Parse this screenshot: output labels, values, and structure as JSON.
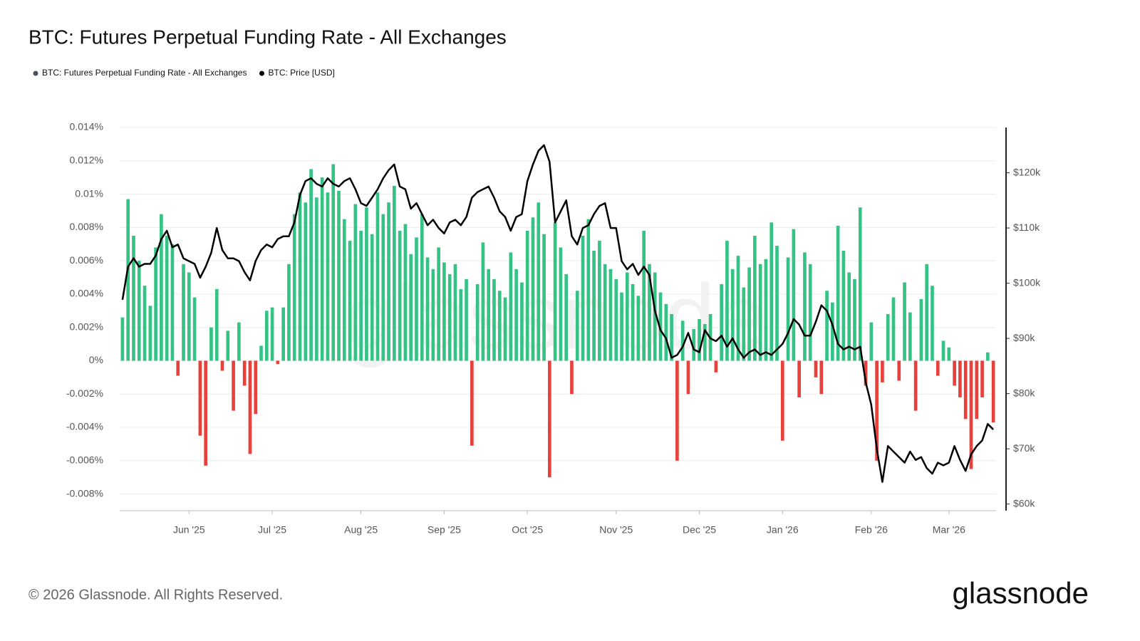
{
  "chart_data": {
    "type": "bar-line",
    "title": "BTC: Futures Perpetual Funding Rate - All Exchanges",
    "categories": [
      null,
      null,
      null,
      null,
      null,
      null,
      null,
      null,
      null,
      null,
      null,
      null,
      "Jun '25",
      null,
      null,
      null,
      null,
      null,
      null,
      null,
      null,
      null,
      null,
      null,
      null,
      null,
      null,
      "Jul '25",
      null,
      null,
      null,
      null,
      null,
      null,
      null,
      null,
      null,
      null,
      null,
      null,
      null,
      null,
      null,
      "Aug '25",
      null,
      null,
      null,
      null,
      null,
      null,
      null,
      null,
      null,
      null,
      null,
      null,
      null,
      null,
      "Sep '25",
      null,
      null,
      null,
      null,
      null,
      null,
      null,
      null,
      null,
      null,
      null,
      null,
      null,
      null,
      "Oct '25",
      null,
      null,
      null,
      null,
      null,
      null,
      null,
      null,
      null,
      null,
      null,
      null,
      null,
      null,
      null,
      "Nov '25",
      null,
      null,
      null,
      null,
      null,
      null,
      null,
      null,
      null,
      null,
      null,
      null,
      null,
      null,
      "Dec '25",
      null,
      null,
      null,
      null,
      null,
      null,
      null,
      null,
      null,
      null,
      null,
      null,
      null,
      null,
      "Jan '26",
      null,
      null,
      null,
      null,
      null,
      null,
      null,
      null,
      null,
      null,
      null,
      null,
      null,
      null,
      null,
      "Feb '26",
      null,
      null,
      null,
      null,
      null,
      null,
      null,
      null,
      null,
      null,
      null,
      null,
      null,
      "Mar '26",
      null,
      null,
      null,
      null,
      null,
      null,
      null,
      null
    ],
    "series": [
      {
        "name": "BTC: Futures Perpetual Funding Rate - All Exchanges",
        "color": "#4a4f5a",
        "positive_color": "#35c285",
        "negative_color": "#e8413c",
        "values": [
          0.0026,
          0.0097,
          0.0075,
          0.006,
          0.0045,
          0.0033,
          0.0068,
          0.0088,
          0.0075,
          0.007,
          -0.0009,
          0.0058,
          0.0053,
          0.0038,
          -0.0045,
          -0.0063,
          0.002,
          0.0043,
          -0.0006,
          0.0018,
          -0.003,
          0.0023,
          -0.0015,
          -0.0056,
          -0.0032,
          0.0009,
          0.003,
          0.0032,
          -0.0002,
          0.0032,
          0.0058,
          0.0088,
          0.0101,
          0.0095,
          0.0115,
          0.0098,
          0.011,
          0.0101,
          0.0118,
          0.0102,
          0.0085,
          0.0072,
          0.0094,
          0.0078,
          0.0092,
          0.0076,
          0.0101,
          0.0088,
          0.0095,
          0.0105,
          0.0078,
          0.0082,
          0.0064,
          0.0074,
          0.0088,
          0.0062,
          0.0055,
          0.0068,
          0.0059,
          0.0052,
          0.0058,
          0.0043,
          0.0049,
          -0.0051,
          0.0046,
          0.0071,
          0.0055,
          0.0049,
          0.0042,
          0.0038,
          0.0065,
          0.0055,
          0.0047,
          0.0078,
          0.0086,
          0.0095,
          0.0076,
          -0.007,
          0.0083,
          0.0068,
          0.0052,
          -0.002,
          0.0042,
          0.0075,
          0.0085,
          0.0066,
          0.0072,
          0.0058,
          0.0055,
          0.0049,
          0.0041,
          0.0053,
          0.0046,
          0.0039,
          0.0078,
          0.0058,
          0.0053,
          0.0041,
          0.0034,
          0.0028,
          -0.006,
          0.0024,
          -0.002,
          0.0019,
          0.0025,
          0.0022,
          0.0028,
          -0.0007,
          0.0046,
          0.0072,
          0.0055,
          0.0063,
          0.0044,
          0.0056,
          0.0075,
          0.0058,
          0.0061,
          0.0083,
          0.0069,
          -0.0048,
          0.0062,
          0.0079,
          -0.0022,
          0.0065,
          0.0058,
          -0.001,
          -0.002,
          0.0042,
          0.0035,
          0.0081,
          0.0066,
          0.0053,
          0.0049,
          0.0092,
          -0.0015,
          0.0023,
          -0.006,
          -0.0013,
          0.0028,
          0.0038,
          -0.0012,
          0.0047,
          0.0029,
          -0.003,
          0.0037,
          0.0058,
          0.0045,
          -0.0009,
          0.0012,
          0.0008,
          -0.0015,
          -0.0022,
          -0.0035,
          -0.0065,
          -0.0035,
          -0.0022,
          0.0005,
          -0.0037
        ]
      },
      {
        "name": "BTC: Price [USD]",
        "color": "#000000",
        "axis": "y2",
        "values": [
          97000,
          103000,
          104500,
          103000,
          103500,
          103500,
          105000,
          108000,
          109500,
          106500,
          107000,
          104500,
          104000,
          103500,
          101000,
          103000,
          105500,
          110000,
          106000,
          104500,
          104500,
          104000,
          102000,
          100500,
          104000,
          106000,
          107000,
          106500,
          108000,
          108500,
          108500,
          111000,
          116000,
          118500,
          119000,
          118000,
          117500,
          119000,
          118000,
          117500,
          118500,
          119000,
          117000,
          114500,
          114000,
          115500,
          117000,
          119000,
          120500,
          121500,
          117500,
          117000,
          113500,
          114500,
          112500,
          110500,
          111500,
          110000,
          109000,
          111000,
          111500,
          110500,
          112000,
          115500,
          116500,
          117000,
          117500,
          115500,
          113000,
          112000,
          109500,
          112000,
          112500,
          118500,
          121500,
          124000,
          125000,
          122000,
          111000,
          113000,
          115000,
          108500,
          107000,
          110000,
          110500,
          112500,
          114000,
          114500,
          110000,
          110000,
          104000,
          102500,
          103500,
          101500,
          103000,
          101500,
          95000,
          91500,
          90000,
          86500,
          87000,
          88500,
          91000,
          88000,
          87500,
          91500,
          90000,
          89500,
          90500,
          88500,
          90000,
          88000,
          86500,
          87500,
          88000,
          87000,
          87500,
          87000,
          88000,
          89000,
          91000,
          93500,
          92500,
          90500,
          90500,
          93000,
          96000,
          95000,
          92500,
          89000,
          88000,
          88500,
          88000,
          88500,
          82000,
          78000,
          70000,
          64000,
          70500,
          69500,
          68500,
          67500,
          69500,
          68000,
          68500,
          66500,
          65500,
          67500,
          67000,
          67500,
          70500,
          68000,
          66000,
          69000,
          70500,
          71500,
          74500,
          73500
        ]
      }
    ],
    "ylim": [
      -0.009,
      0.014
    ],
    "yticks": [
      {
        "value": 0.014,
        "label": "0.014%"
      },
      {
        "value": 0.012,
        "label": "0.012%"
      },
      {
        "value": 0.01,
        "label": "0.01%"
      },
      {
        "value": 0.008,
        "label": "0.008%"
      },
      {
        "value": 0.006,
        "label": "0.006%"
      },
      {
        "value": 0.004,
        "label": "0.004%"
      },
      {
        "value": 0.002,
        "label": "0.002%"
      },
      {
        "value": 0,
        "label": "0%"
      },
      {
        "value": -0.002,
        "label": "-0.002%"
      },
      {
        "value": -0.004,
        "label": "-0.004%"
      },
      {
        "value": -0.006,
        "label": "-0.006%"
      },
      {
        "value": -0.008,
        "label": "-0.008%"
      }
    ],
    "y2lim": [
      58800,
      128200
    ],
    "y2ticks": [
      {
        "value": 60000,
        "label": "$60k"
      },
      {
        "value": 70000,
        "label": "$70k"
      },
      {
        "value": 80000,
        "label": "$80k"
      },
      {
        "value": 90000,
        "label": "$90k"
      },
      {
        "value": 100000,
        "label": "$100k"
      },
      {
        "value": 110000,
        "label": "$110k"
      },
      {
        "value": 120000,
        "label": "$120k"
      }
    ],
    "grid": true
  },
  "footer": "© 2026 Glassnode. All Rights Reserved.",
  "brand": "glassnode"
}
